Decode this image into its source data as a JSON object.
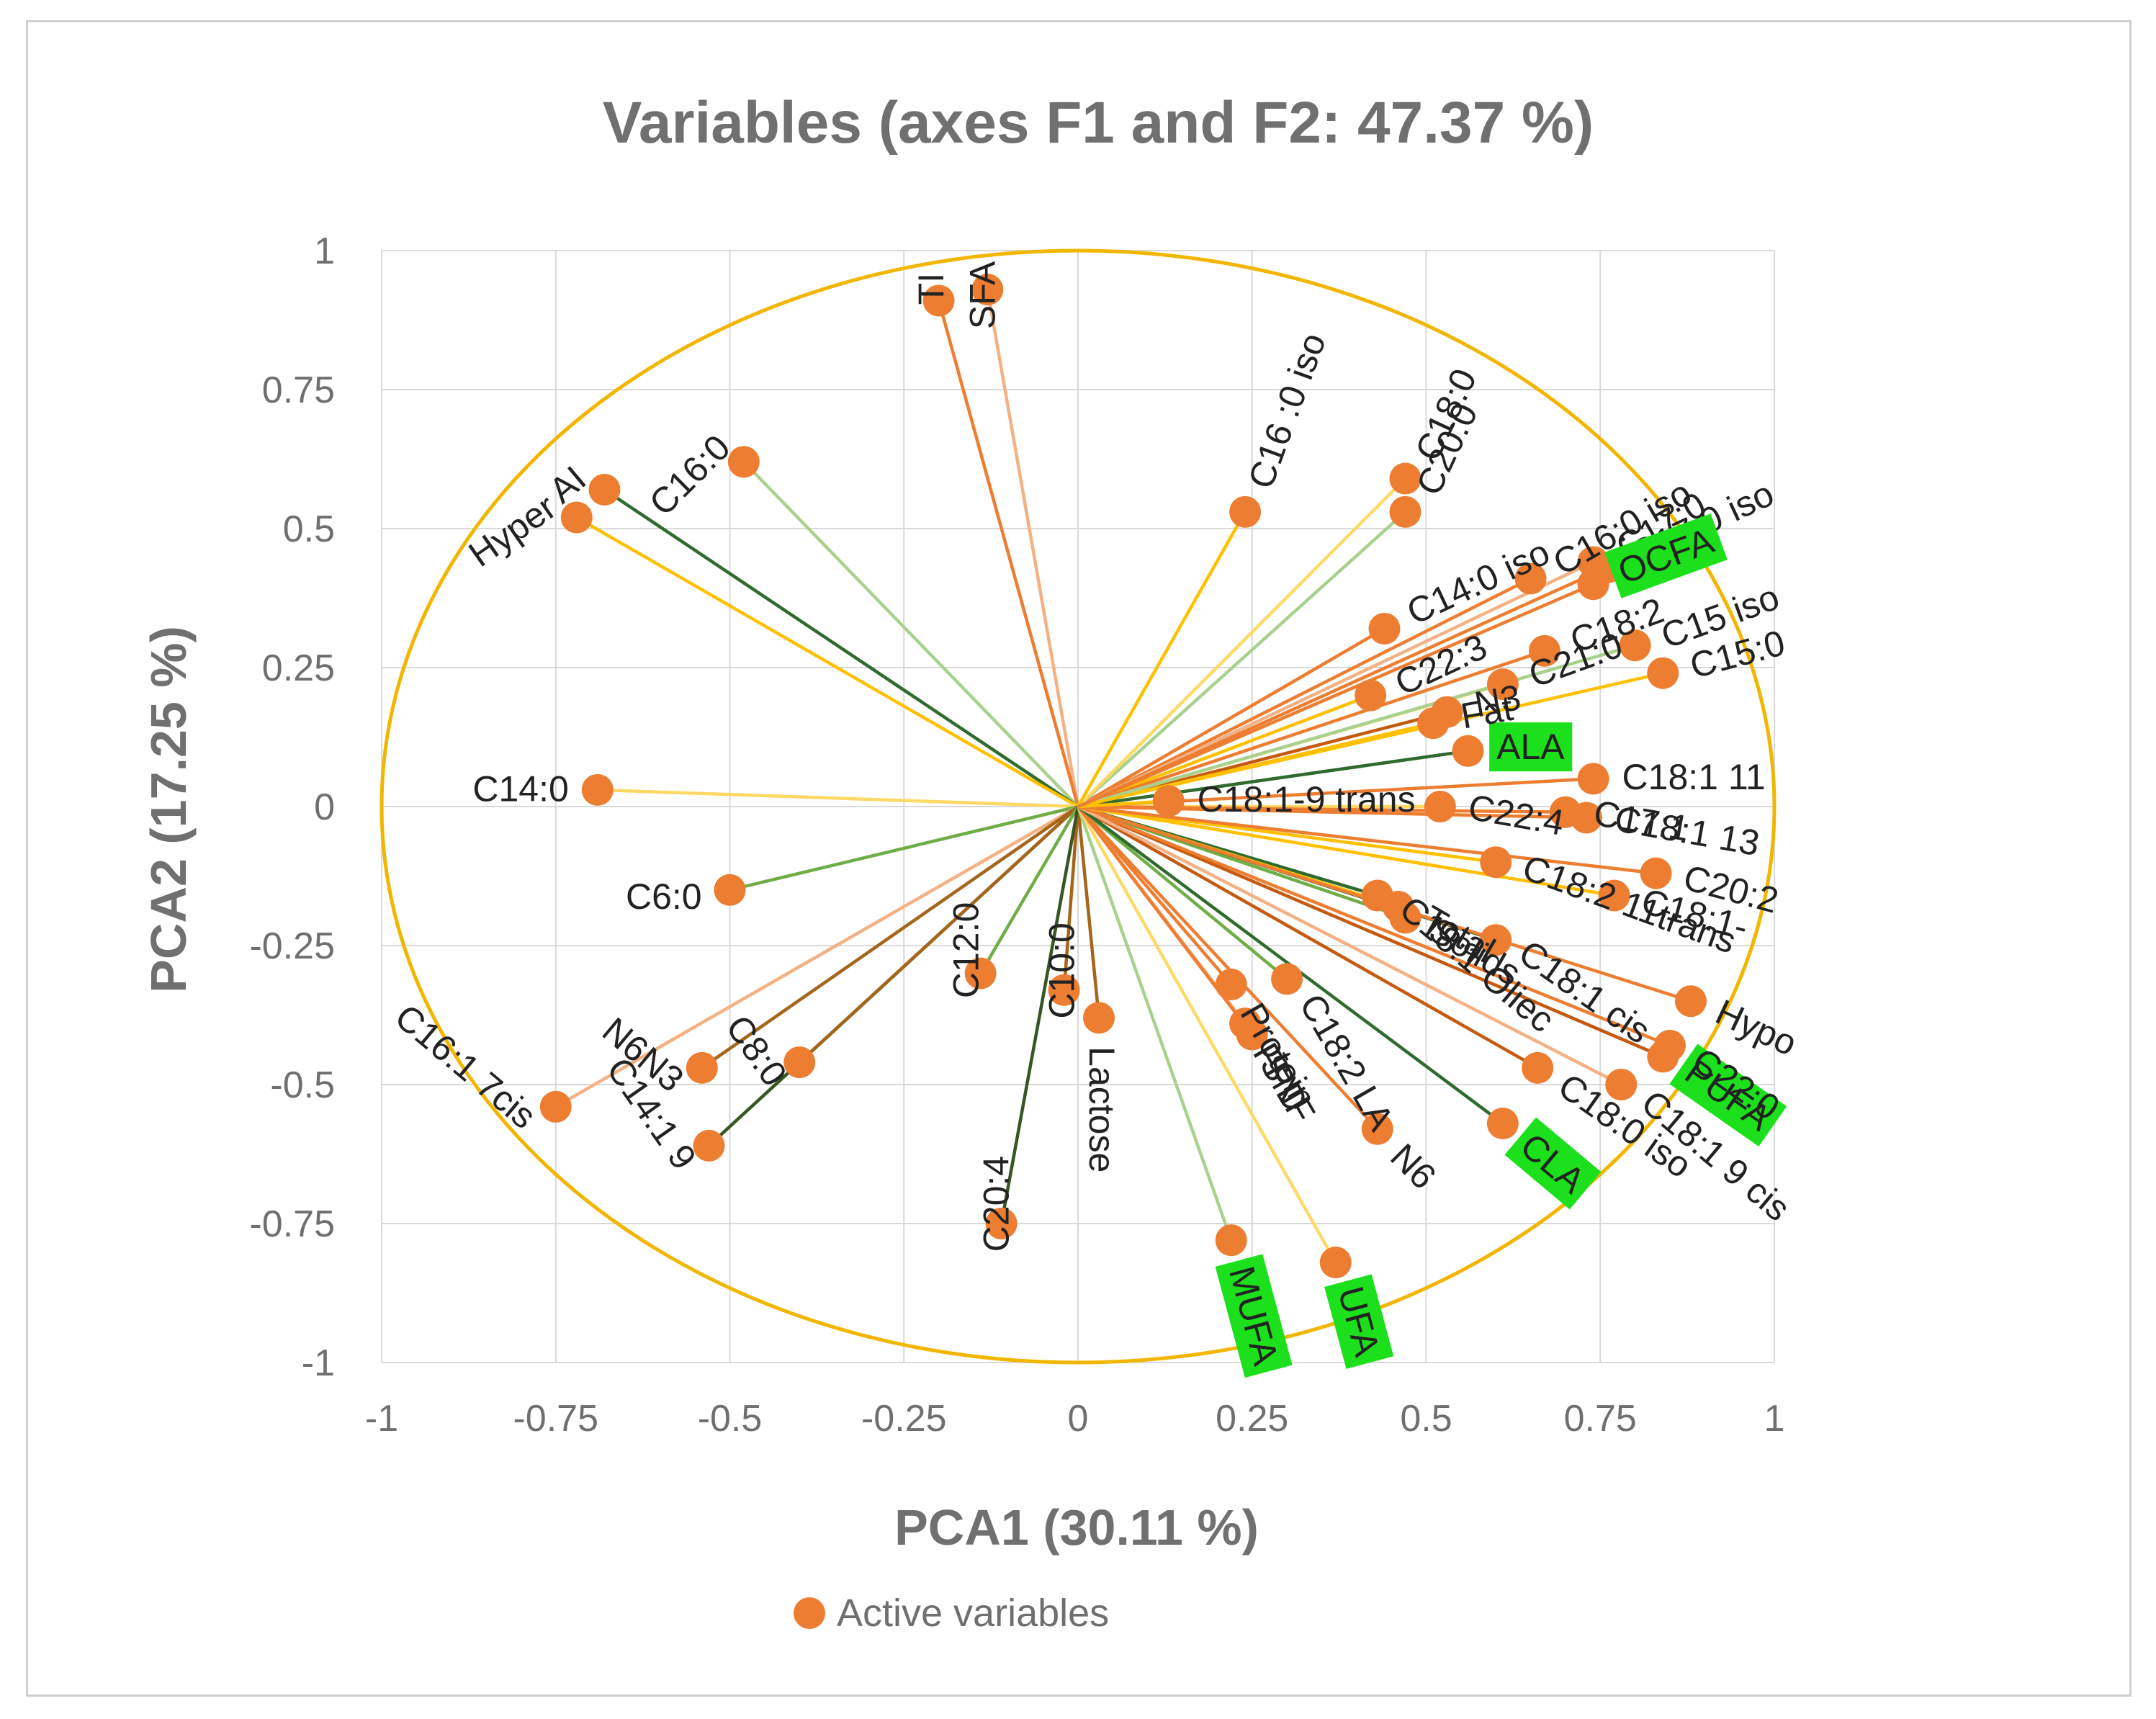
{
  "chart_data": {
    "type": "scatter",
    "subtype": "pca-correlation-circle",
    "title": "Variables (axes F1 and F2: 47.37 %)",
    "xlabel": "PCA1 (30.11 %)",
    "ylabel": "PCA2 (17.25 %)",
    "xlim": [
      -1,
      1
    ],
    "ylim": [
      -1,
      1
    ],
    "xticks": [
      "-1",
      "-0.75",
      "-0.5",
      "-0.25",
      "0",
      "0.25",
      "0.5",
      "0.75",
      "1"
    ],
    "yticks": [
      "1",
      "0.75",
      "0.5",
      "0.25",
      "0",
      "-0.25",
      "-0.5",
      "-0.75",
      "-1"
    ],
    "grid": true,
    "legend": {
      "position": "bottom",
      "entries": [
        "Active variables"
      ]
    },
    "colors": {
      "marker": "#ED7D31",
      "circle": "#F2B600",
      "grid": "#d9d9d9",
      "highlight": "#1BE01B"
    },
    "points": [
      {
        "label": "SFA",
        "x": -0.13,
        "y": 0.93,
        "color": "#F4B183",
        "angle": 90
      },
      {
        "label": "TI",
        "x": -0.2,
        "y": 0.91,
        "color": "#ED7D31",
        "angle": 90
      },
      {
        "label": "C16:0",
        "x": -0.48,
        "y": 0.62,
        "color": "#A9D18E",
        "angle": 45
      },
      {
        "label": "AI",
        "x": -0.68,
        "y": 0.57,
        "color": "#2F6B2F",
        "angle": 40
      },
      {
        "label": "Hyper",
        "x": -0.72,
        "y": 0.52,
        "color": "#FFC000",
        "angle": 35
      },
      {
        "label": "C14:0",
        "x": -0.69,
        "y": 0.03,
        "color": "#FFD966",
        "angle": 0
      },
      {
        "label": "C6:0",
        "x": -0.5,
        "y": -0.15,
        "color": "#70AD47",
        "angle": 0
      },
      {
        "label": "C16:1 7cis",
        "x": -0.75,
        "y": -0.54,
        "color": "#F4B183",
        "angle": -40
      },
      {
        "label": "N6N3",
        "x": -0.54,
        "y": -0.47,
        "color": "#A5661A",
        "angle": -40
      },
      {
        "label": "C14:1 9",
        "x": -0.53,
        "y": -0.61,
        "color": "#375623",
        "angle": -55
      },
      {
        "label": "C8:0",
        "x": -0.4,
        "y": -0.46,
        "color": "#A5661A",
        "angle": -55
      },
      {
        "label": "C12:0",
        "x": -0.14,
        "y": -0.3,
        "color": "#70AD47",
        "angle": 90
      },
      {
        "label": "C10:0",
        "x": -0.02,
        "y": -0.33,
        "color": "#A5661A",
        "angle": 90
      },
      {
        "label": "Lactose",
        "x": 0.03,
        "y": -0.38,
        "color": "#A5661A",
        "angle": -90
      },
      {
        "label": "C20:4",
        "x": -0.11,
        "y": -0.75,
        "color": "#375623",
        "angle": 90
      },
      {
        "label": "MUFA",
        "x": 0.22,
        "y": -0.78,
        "color": "#A9D18E",
        "angle": -75,
        "highlight": true
      },
      {
        "label": "UFA",
        "x": 0.37,
        "y": -0.82,
        "color": "#FFD966",
        "angle": -75,
        "highlight": true
      },
      {
        "label": "Protein",
        "x": 0.22,
        "y": -0.32,
        "color": "#ED7D31",
        "angle": -60
      },
      {
        "label": "FPD",
        "x": 0.24,
        "y": -0.39,
        "color": "#F4B183",
        "angle": -60
      },
      {
        "label": "SNF",
        "x": 0.25,
        "y": -0.41,
        "color": "#ED7D31",
        "angle": -60
      },
      {
        "label": "C18:2 LA",
        "x": 0.3,
        "y": -0.31,
        "color": "#70AD47",
        "angle": -60
      },
      {
        "label": "N6",
        "x": 0.43,
        "y": -0.58,
        "color": "#ED7D31",
        "angle": -45
      },
      {
        "label": "C18:1 Oliec",
        "x": 0.43,
        "y": -0.16,
        "color": "#2F6B2F",
        "angle": -40
      },
      {
        "label": "Total",
        "x": 0.46,
        "y": -0.18,
        "color": "#FFC000",
        "angle": -30
      },
      {
        "label": "Solids",
        "x": 0.47,
        "y": -0.2,
        "color": "#70AD47",
        "angle": -30
      },
      {
        "label": "C18:1 cis",
        "x": 0.6,
        "y": -0.24,
        "color": "#2F6B2F",
        "angle": -35
      },
      {
        "label": "C18:0 iso",
        "x": 0.66,
        "y": -0.47,
        "color": "#C55A11",
        "angle": -35
      },
      {
        "label": "CLA",
        "x": 0.61,
        "y": -0.57,
        "color": "#2F6B2F",
        "angle": -40,
        "highlight": true
      },
      {
        "label": "PUFA",
        "x": 0.84,
        "y": -0.45,
        "color": "#C55A11",
        "angle": -35,
        "highlight": true
      },
      {
        "label": "C22:0",
        "x": 0.85,
        "y": -0.43,
        "color": "#ED7D31",
        "angle": -35
      },
      {
        "label": "C18:1 9 cis",
        "x": 0.78,
        "y": -0.5,
        "color": "#F4B183",
        "angle": -40
      },
      {
        "label": "Hypo",
        "x": 0.88,
        "y": -0.35,
        "color": "#ED7D31",
        "angle": -25
      },
      {
        "label": "C18:2 11trans",
        "x": 0.6,
        "y": -0.1,
        "color": "#FFC000",
        "angle": -20
      },
      {
        "label": "C22:4",
        "x": 0.52,
        "y": 0.0,
        "color": "#FFD966",
        "angle": -10
      },
      {
        "label": "C17:1",
        "x": 0.7,
        "y": -0.01,
        "color": "#ED7D31",
        "angle": -10
      },
      {
        "label": "C18:1-",
        "x": 0.77,
        "y": -0.16,
        "color": "#FFC000",
        "angle": -15
      },
      {
        "label": "C18:1 13",
        "x": 0.73,
        "y": -0.02,
        "color": "#ED7D31",
        "angle": -10
      },
      {
        "label": "C20:2",
        "x": 0.83,
        "y": -0.12,
        "color": "#ED7D31",
        "angle": -15
      },
      {
        "label": "C18:1 11",
        "x": 0.74,
        "y": 0.05,
        "color": "#ED7D31",
        "angle": 0
      },
      {
        "label": "ALA",
        "x": 0.56,
        "y": 0.1,
        "color": "#2F6B2F",
        "angle": 0,
        "highlight": true
      },
      {
        "label": "N3",
        "x": 0.53,
        "y": 0.17,
        "color": "#C55A11",
        "angle": 10
      },
      {
        "label": "Fat",
        "x": 0.51,
        "y": 0.15,
        "color": "#FFC000",
        "angle": 10
      },
      {
        "label": "C18:1-9 trans",
        "x": 0.13,
        "y": 0.01,
        "color": "#FFC000",
        "angle": 0
      },
      {
        "label": "C22:3",
        "x": 0.42,
        "y": 0.2,
        "color": "#FFC000",
        "angle": 25
      },
      {
        "label": "C14:0 iso",
        "x": 0.44,
        "y": 0.32,
        "color": "#ED7D31",
        "angle": 25
      },
      {
        "label": "C21:0",
        "x": 0.61,
        "y": 0.22,
        "color": "#FFD966",
        "angle": 20
      },
      {
        "label": "C18:2",
        "x": 0.67,
        "y": 0.28,
        "color": "#ED7D31",
        "angle": 20
      },
      {
        "label": "C15 iso",
        "x": 0.8,
        "y": 0.29,
        "color": "#A9D18E",
        "angle": 20
      },
      {
        "label": "C15:0",
        "x": 0.84,
        "y": 0.24,
        "color": "#FFC000",
        "angle": 15
      },
      {
        "label": "C16:0 iso",
        "x": 0.65,
        "y": 0.41,
        "color": "#ED7D31",
        "angle": 30
      },
      {
        "label": "C17:0",
        "x": 0.74,
        "y": 0.44,
        "color": "#F4B183",
        "angle": 30
      },
      {
        "label": "C17:0 iso",
        "x": 0.76,
        "y": 0.43,
        "color": "#ED7D31",
        "angle": 25
      },
      {
        "label": "C20:0",
        "x": 0.47,
        "y": 0.53,
        "color": "#A9D18E",
        "angle": 65
      },
      {
        "label": "C18:0",
        "x": 0.47,
        "y": 0.59,
        "color": "#FFD966",
        "angle": 65
      },
      {
        "label": "C16 :0 iso",
        "x": 0.24,
        "y": 0.53,
        "color": "#FFC000",
        "angle": 70
      },
      {
        "label": "OCFA",
        "x": 0.74,
        "y": 0.4,
        "color": "#ED7D31",
        "angle": 20,
        "highlight": true
      }
    ]
  }
}
